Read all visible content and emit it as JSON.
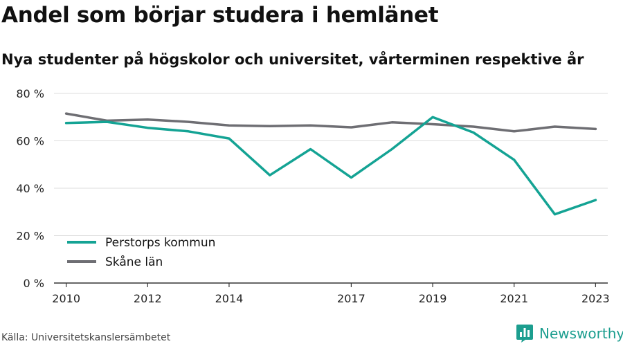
{
  "header": {
    "title": "Andel som börjar studera i hemlänet",
    "subtitle": "Nya studenter på högskolor och universitet, vårterminen respektive år"
  },
  "footer": {
    "source": "Källa: Universitetskanslersämbetet",
    "brand": "Newsworthy",
    "brand_icon": "bar-chart-logo-icon",
    "brand_color": "#1c9e8f"
  },
  "chart_data": {
    "type": "line",
    "title": "Andel som börjar studera i hemlänet",
    "subtitle": "Nya studenter på högskolor och universitet, vårterminen respektive år",
    "xlabel": "",
    "ylabel": "",
    "x": [
      2010,
      2011,
      2012,
      2013,
      2014,
      2015,
      2016,
      2017,
      2018,
      2019,
      2020,
      2021,
      2022,
      2023
    ],
    "xticks": [
      2010,
      2012,
      2014,
      2017,
      2019,
      2021,
      2023
    ],
    "xlim": [
      2009.7,
      2023.3
    ],
    "ylim": [
      0,
      80
    ],
    "yticks": [
      0,
      20,
      40,
      60,
      80
    ],
    "ytick_labels": [
      "0 %",
      "20 %",
      "40 %",
      "60 %",
      "80 %"
    ],
    "grid": true,
    "legend_position": "bottom-left",
    "series": [
      {
        "name": "Perstorps kommun",
        "color": "#14a394",
        "values": [
          67.5,
          68,
          65.5,
          64,
          61,
          45.5,
          56.5,
          44.5,
          56.5,
          70,
          63.5,
          52,
          29,
          35
        ]
      },
      {
        "name": "Skåne län",
        "color": "#6e6e73",
        "values": [
          71.5,
          68.5,
          69,
          68,
          66.5,
          66.2,
          66.5,
          65.7,
          67.8,
          67,
          66,
          64,
          66,
          65
        ]
      }
    ]
  }
}
